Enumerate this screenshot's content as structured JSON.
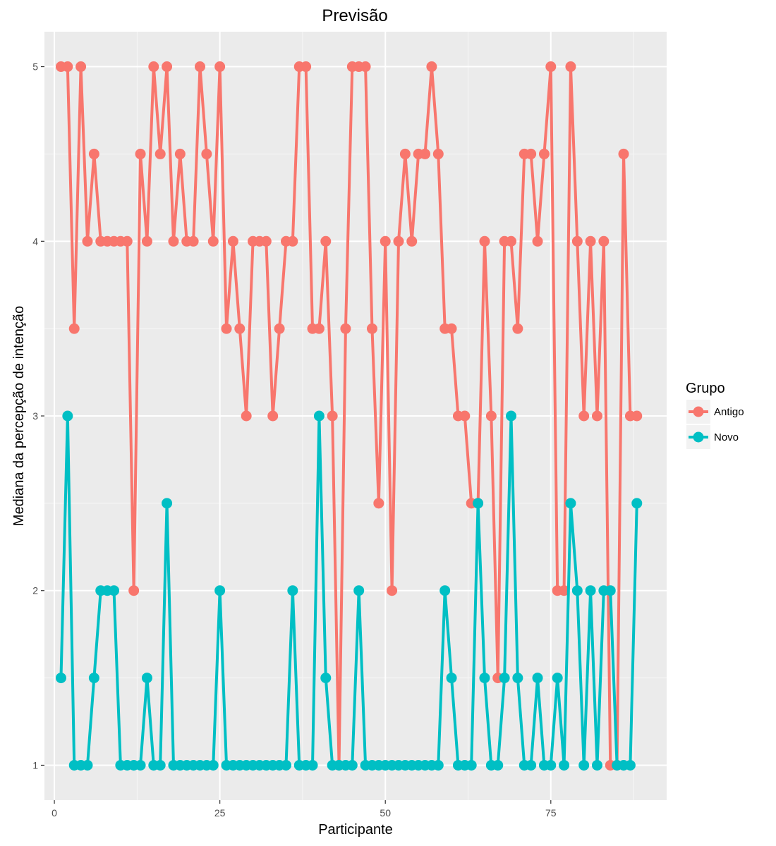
{
  "chart_data": {
    "type": "line",
    "title": "Previsão",
    "xlabel": "Participante",
    "ylabel": "Mediana da percepção de intenção",
    "xlim": [
      -1.5,
      92.5
    ],
    "ylim": [
      0.8,
      5.2
    ],
    "x_ticks": [
      0,
      25,
      50,
      75
    ],
    "y_ticks": [
      1,
      2,
      3,
      4,
      5
    ],
    "grid": true,
    "legend": {
      "title": "Grupo",
      "position": "right"
    },
    "x": [
      1,
      2,
      3,
      4,
      5,
      6,
      7,
      8,
      9,
      10,
      11,
      12,
      13,
      14,
      15,
      16,
      17,
      18,
      19,
      20,
      21,
      22,
      23,
      24,
      25,
      26,
      27,
      28,
      29,
      30,
      31,
      32,
      33,
      34,
      35,
      36,
      37,
      38,
      39,
      40,
      41,
      42,
      43,
      44,
      45,
      46,
      47,
      48,
      49,
      50,
      51,
      52,
      53,
      54,
      55,
      56,
      57,
      58,
      59,
      60,
      61,
      62,
      63,
      64,
      65,
      66,
      67,
      68,
      69,
      70,
      71,
      72,
      73,
      74,
      75,
      76,
      77,
      78,
      79,
      80,
      81,
      82,
      83,
      84,
      85,
      86,
      87,
      88
    ],
    "series": [
      {
        "name": "Antigo",
        "color": "#F8766D",
        "values": [
          5,
          5,
          3.5,
          5,
          4,
          4.5,
          4,
          4,
          4,
          4,
          4,
          2,
          4.5,
          4,
          5,
          4.5,
          5,
          4,
          4.5,
          4,
          4,
          5,
          4.5,
          4,
          5,
          3.5,
          4,
          3.5,
          3,
          4,
          4,
          4,
          3,
          3.5,
          4,
          4,
          5,
          5,
          3.5,
          3.5,
          4,
          3,
          1,
          3.5,
          5,
          5,
          5,
          3.5,
          2.5,
          4,
          2,
          4,
          4.5,
          4,
          4.5,
          4.5,
          5,
          4.5,
          3.5,
          3.5,
          3,
          3,
          2.5,
          2.5,
          4,
          3,
          1.5,
          4,
          4,
          3.5,
          4.5,
          4.5,
          4,
          4.5,
          5,
          2,
          2,
          5,
          4,
          3,
          4,
          3,
          4,
          1,
          1,
          4.5,
          3,
          3
        ]
      },
      {
        "name": "Novo",
        "color": "#00BFC4",
        "values": [
          1.5,
          3,
          1,
          1,
          1,
          1.5,
          2,
          2,
          2,
          1,
          1,
          1,
          1,
          1.5,
          1,
          1,
          2.5,
          1,
          1,
          1,
          1,
          1,
          1,
          1,
          2,
          1,
          1,
          1,
          1,
          1,
          1,
          1,
          1,
          1,
          1,
          2,
          1,
          1,
          1,
          3,
          1.5,
          1,
          1,
          1,
          1,
          2,
          1,
          1,
          1,
          1,
          1,
          1,
          1,
          1,
          1,
          1,
          1,
          1,
          2,
          1.5,
          1,
          1,
          1,
          2.5,
          1.5,
          1,
          1,
          1.5,
          3,
          1.5,
          1,
          1,
          1.5,
          1,
          1,
          1.5,
          1,
          2.5,
          2,
          1,
          2,
          1,
          2,
          2,
          1,
          1,
          1,
          2.5
        ]
      }
    ]
  }
}
